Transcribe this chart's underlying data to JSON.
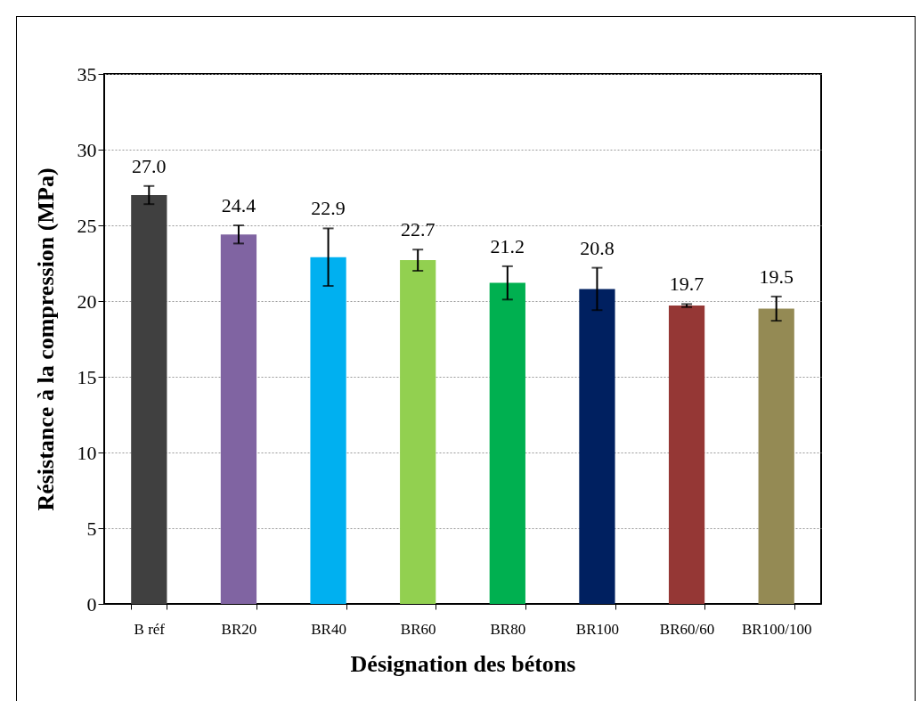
{
  "chart_data": {
    "type": "bar",
    "xlabel": "Désignation des bétons",
    "ylabel": "Résistance à la compression  (MPa)",
    "categories": [
      "B réf",
      "BR20",
      "BR40",
      "BR60",
      "BR80",
      "BR100",
      "BR60/60",
      "BR100/100"
    ],
    "values": [
      27.0,
      24.4,
      22.9,
      22.7,
      21.2,
      20.8,
      19.7,
      19.5
    ],
    "value_labels": [
      "27.0",
      "24.4",
      "22.9",
      "22.7",
      "21.2",
      "20.8",
      "19.7",
      "19.5"
    ],
    "errors": [
      0.6,
      0.6,
      1.9,
      0.7,
      1.1,
      1.4,
      0.1,
      0.8
    ],
    "colors": [
      "#404040",
      "#8064a2",
      "#00b0f0",
      "#92d050",
      "#00b050",
      "#002060",
      "#953735",
      "#948a54"
    ],
    "ylim": [
      0,
      35
    ],
    "yticks": [
      0,
      5,
      10,
      15,
      20,
      25,
      30,
      35
    ],
    "grid": "y"
  }
}
